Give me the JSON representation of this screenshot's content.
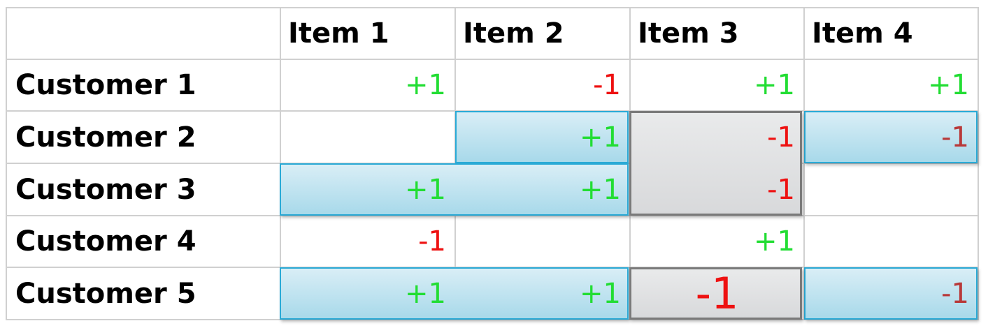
{
  "columns": [
    "Item 1",
    "Item 2",
    "Item 3",
    "Item 4"
  ],
  "rows": [
    {
      "label": "Customer 1",
      "values": [
        "+1",
        "-1",
        "+1",
        "+1"
      ]
    },
    {
      "label": "Customer 2",
      "values": [
        "",
        "+1",
        "-1",
        "-1"
      ]
    },
    {
      "label": "Customer 3",
      "values": [
        "+1",
        "+1",
        "-1",
        ""
      ]
    },
    {
      "label": "Customer 4",
      "values": [
        "-1",
        "",
        "+1",
        ""
      ]
    },
    {
      "label": "Customer 5",
      "values": [
        "+1",
        "+1",
        "-1",
        "-1"
      ]
    }
  ],
  "colors": {
    "positive": "#22dd33",
    "negative": "#ee1111",
    "highlight_border": "#2aaad6",
    "target_border": "#7a7a7a"
  }
}
